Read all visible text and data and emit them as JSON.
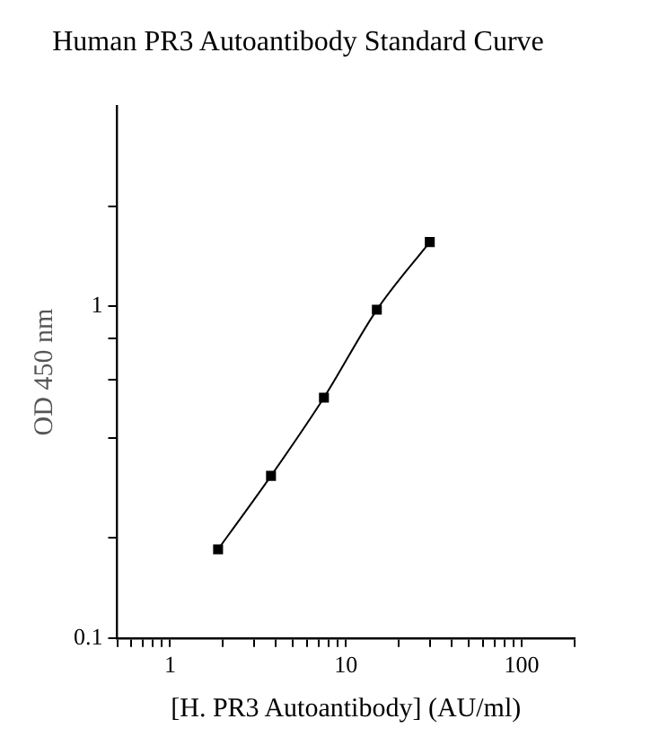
{
  "chart_data": {
    "type": "line",
    "title": "Human PR3 Autoantibody Standard Curve",
    "xlabel": "[H. PR3 Autoantibody] (AU/ml)",
    "ylabel": "OD 450 nm",
    "x": [
      1.875,
      3.75,
      7.5,
      15,
      30
    ],
    "series": [
      {
        "color": "#000000",
        "values": [
          0.185,
          0.308,
          0.53,
          0.975,
          1.56
        ]
      }
    ],
    "log": "xy",
    "xlim": [
      0.5,
      200
    ],
    "ylim": [
      0.1,
      4
    ],
    "xticks": [
      {
        "value": 0.5,
        "label": null
      },
      {
        "value": 0.6,
        "label": null
      },
      {
        "value": 0.7,
        "label": null
      },
      {
        "value": 0.8,
        "label": null
      },
      {
        "value": 0.9,
        "label": null
      },
      1,
      {
        "value": 2,
        "label": null
      },
      {
        "value": 3,
        "label": null
      },
      {
        "value": 4,
        "label": null
      },
      {
        "value": 5,
        "label": null
      },
      {
        "value": 6,
        "label": null
      },
      {
        "value": 7,
        "label": null
      },
      {
        "value": 8,
        "label": null
      },
      {
        "value": 9,
        "label": null
      },
      10,
      {
        "value": 20,
        "label": null
      },
      {
        "value": 30,
        "label": null
      },
      {
        "value": 40,
        "label": null
      },
      {
        "value": 50,
        "label": null
      },
      {
        "value": 60,
        "label": null
      },
      {
        "value": 70,
        "label": null
      },
      {
        "value": 80,
        "label": null
      },
      {
        "value": 90,
        "label": null
      },
      100,
      {
        "value": 200,
        "label": null
      }
    ],
    "yticks": [
      0.1,
      {
        "value": 0.2,
        "label": null
      },
      {
        "value": 0.4,
        "label": null
      },
      {
        "value": 0.6,
        "label": null
      },
      {
        "value": 0.8,
        "label": null
      },
      1,
      {
        "value": 2,
        "label": null
      }
    ],
    "grid": false,
    "legend": false,
    "marker": "square",
    "line_style": "solid"
  }
}
